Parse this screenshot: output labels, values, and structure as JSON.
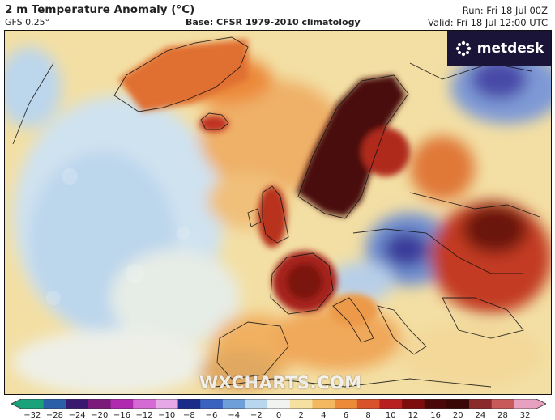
{
  "header": {
    "title": "2 m Temperature Anomaly (°C)",
    "model": "GFS 0.25°",
    "base": "Base: CFSR 1979-2010 climatology",
    "run": "Run: Fri 18 Jul 00Z",
    "valid": "Valid: Fri 18 Jul 12:00 UTC"
  },
  "branding": {
    "logo_text": "metdesk",
    "watermark": "WXCHARTS.COM",
    "logo_bg": "#1a1438"
  },
  "colorbar": {
    "ticks": [
      "−32",
      "−28",
      "−24",
      "−20",
      "−16",
      "−12",
      "−10",
      "−8",
      "−6",
      "−4",
      "−2",
      "0",
      "2",
      "4",
      "6",
      "8",
      "10",
      "12",
      "16",
      "20",
      "24",
      "28",
      "32"
    ],
    "colors": [
      "#1aa37a",
      "#2b5fa8",
      "#3a1870",
      "#7a1a7a",
      "#b02ab0",
      "#d56ad5",
      "#e6a8e6",
      "#1a2c8a",
      "#3a62c0",
      "#6f9fd8",
      "#b8d6ee",
      "#f1f3f0",
      "#f5e0a0",
      "#f3b860",
      "#ec8a3a",
      "#d9532a",
      "#b81f1f",
      "#7e0e0e",
      "#4a0808",
      "#3a0606",
      "#8a2a2a",
      "#c85a5a",
      "#e8a0c0"
    ]
  },
  "map_layers": {
    "ocean_cool": "#c8dff0",
    "ocean_neutral": "#eef0ec",
    "warm_light": "#f3d690",
    "warm": "#efa25a",
    "hot": "#d4502a",
    "very_hot": "#8b1d12",
    "extreme": "#4a1008",
    "cold": "#6f8fd0",
    "very_cold": "#3a3a9a"
  }
}
